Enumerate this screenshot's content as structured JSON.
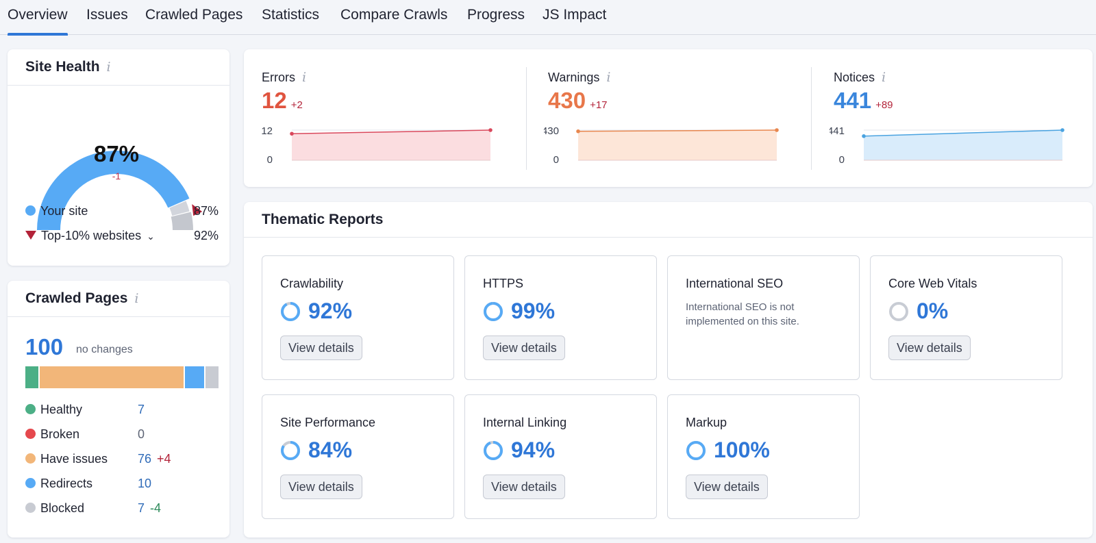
{
  "tabs": [
    {
      "label": "Overview",
      "active": true
    },
    {
      "label": "Issues"
    },
    {
      "label": "Crawled Pages"
    },
    {
      "label": "Statistics"
    },
    {
      "label": "Compare Crawls"
    },
    {
      "label": "Progress"
    },
    {
      "label": "JS Impact"
    }
  ],
  "site_health": {
    "title": "Site Health",
    "info_icon": "i",
    "value": "87%",
    "value_fraction": 0.87,
    "delta": "-1",
    "top10_fraction": 0.92,
    "legend": [
      {
        "label": "Your site",
        "value": "87%",
        "color": "#57aaf5"
      },
      {
        "label": "Top-10% websites",
        "value": "92%",
        "color": "#b32339",
        "chevron": "⌄"
      }
    ]
  },
  "crawled_pages": {
    "title": "Crawled Pages",
    "info_icon": "i",
    "count": "100",
    "note": "no changes",
    "bar": [
      {
        "name": "Healthy",
        "value": 7,
        "color": "#4caf86"
      },
      {
        "name": "Broken",
        "value": 0,
        "color": "#e5484d"
      },
      {
        "name": "Have issues",
        "value": 76,
        "color": "#f2b679"
      },
      {
        "name": "Redirects",
        "value": 10,
        "color": "#57aaf5"
      },
      {
        "name": "Blocked",
        "value": 7,
        "color": "#c8cbd2"
      }
    ],
    "rows": [
      {
        "label": "Healthy",
        "value": "7",
        "delta": "",
        "color": "#4caf86"
      },
      {
        "label": "Broken",
        "value": "0",
        "delta": "",
        "color": "#e5484d"
      },
      {
        "label": "Have issues",
        "value": "76",
        "delta": "+4",
        "color": "#f2b679",
        "delta_color": "#b32339"
      },
      {
        "label": "Redirects",
        "value": "10",
        "delta": "",
        "color": "#57aaf5"
      },
      {
        "label": "Blocked",
        "value": "7",
        "delta": "-4",
        "color": "#c8cbd2",
        "delta_color": "#2c8a5a"
      }
    ]
  },
  "issues": [
    {
      "label": "Errors",
      "info_icon": "i",
      "count": "12",
      "delta": "+2",
      "color": "#e0543f",
      "line": "#d9485c",
      "fill": "#fbdde0",
      "y_top": "12",
      "y_bottom": "0",
      "start": 0.88,
      "end": 1.0
    },
    {
      "label": "Warnings",
      "info_icon": "i",
      "count": "430",
      "delta": "+17",
      "color": "#e8774a",
      "line": "#e8874f",
      "fill": "#fde6d8",
      "y_top": "430",
      "y_bottom": "0",
      "start": 0.96,
      "end": 1.0
    },
    {
      "label": "Notices",
      "info_icon": "i",
      "count": "441",
      "delta": "+89",
      "color": "#3a86dc",
      "line": "#4aa3e0",
      "fill": "#d9ecfb",
      "y_top": "441",
      "y_bottom": "0",
      "start": 0.8,
      "end": 1.0
    }
  ],
  "thematic": {
    "title": "Thematic Reports",
    "reports": [
      {
        "title": "Crawlability",
        "pct": "92%",
        "fraction": 0.92,
        "button": "View details"
      },
      {
        "title": "HTTPS",
        "pct": "99%",
        "fraction": 0.99,
        "button": "View details"
      },
      {
        "title": "International SEO",
        "desc": "International SEO is not implemented on this site."
      },
      {
        "title": "Core Web Vitals",
        "pct": "0%",
        "fraction": 0,
        "button": "View details"
      },
      {
        "title": "Site Performance",
        "pct": "84%",
        "fraction": 0.84,
        "button": "View details"
      },
      {
        "title": "Internal Linking",
        "pct": "94%",
        "fraction": 0.94,
        "button": "View details"
      },
      {
        "title": "Markup",
        "pct": "100%",
        "fraction": 1.0,
        "button": "View details"
      }
    ]
  }
}
